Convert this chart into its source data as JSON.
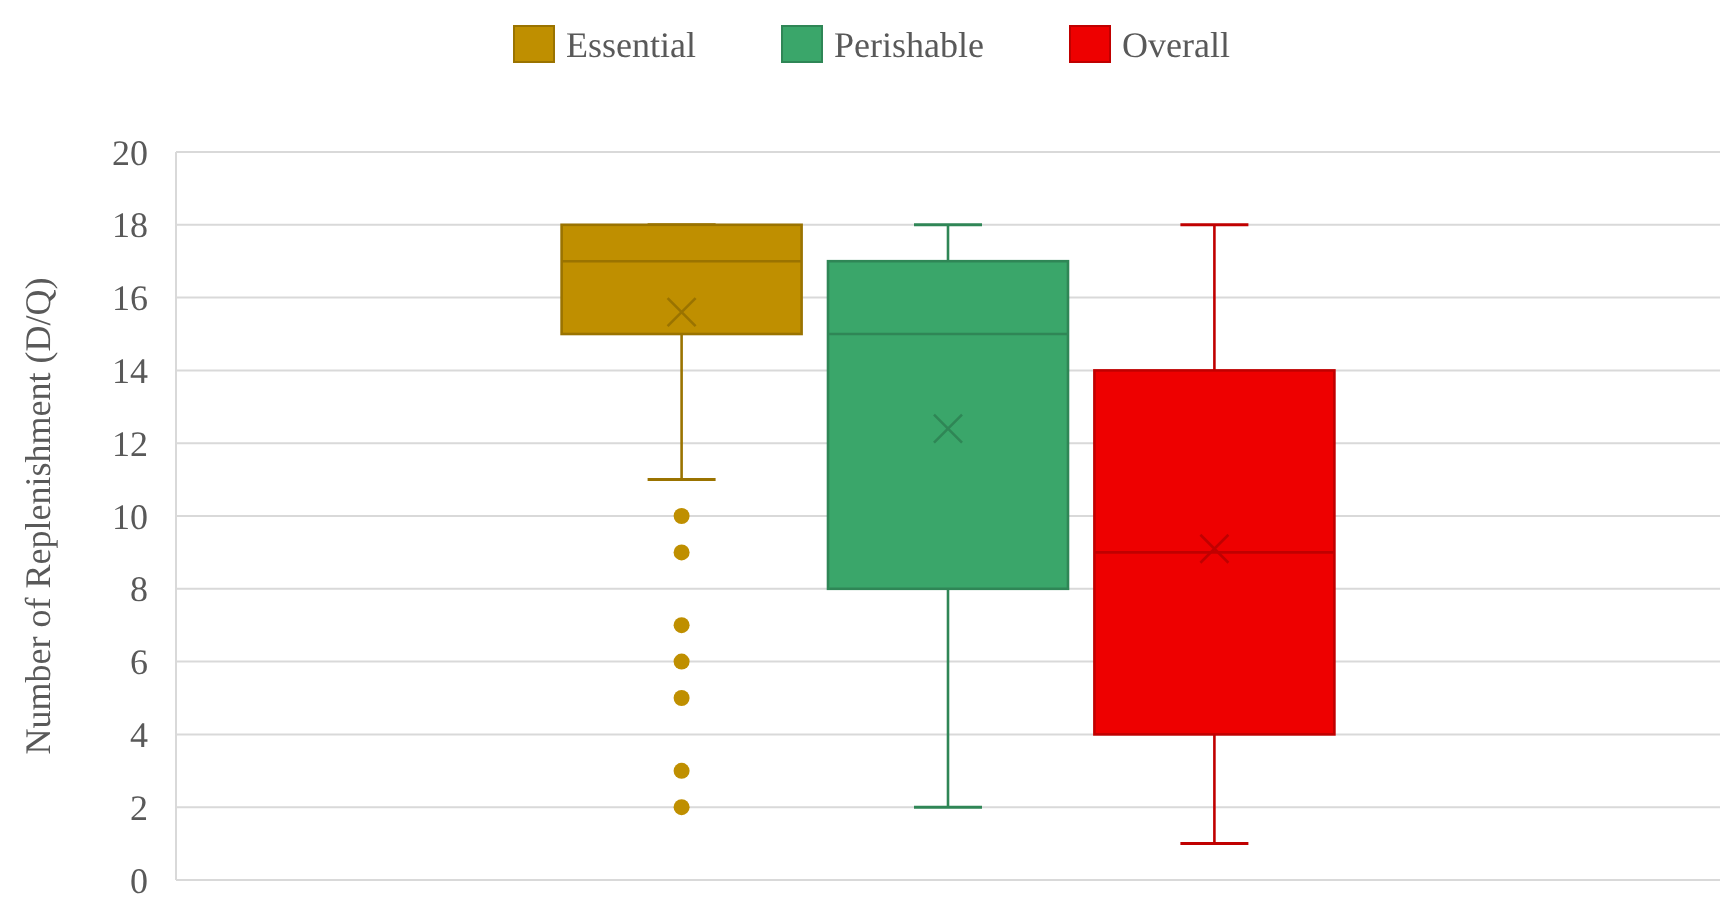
{
  "chart_data": {
    "type": "box",
    "categories": [
      null
    ],
    "ylabel": "Number of Replenishment  (D/Q)",
    "ylim": [
      0,
      20
    ],
    "yticks": [
      0,
      2,
      4,
      6,
      8,
      10,
      12,
      14,
      16,
      18,
      20
    ],
    "grid": "y",
    "legend": "top",
    "series": [
      {
        "name": "Essential",
        "color": "#bf8f00",
        "boxes": [
          {
            "low": 11,
            "q1": 15,
            "median": 17,
            "q3": 18,
            "high": 18,
            "mean": 15.6,
            "outliers": [
              10,
              9,
              7,
              6,
              5,
              3,
              2
            ]
          }
        ]
      },
      {
        "name": "Perishable",
        "color": "#3aa66a",
        "boxes": [
          {
            "low": 2,
            "q1": 8,
            "median": 15,
            "q3": 17,
            "high": 18,
            "mean": 12.4
          }
        ]
      },
      {
        "name": "Overall",
        "color": "#ee0000",
        "boxes": [
          {
            "low": 1,
            "q1": 4,
            "median": 9,
            "q3": 14,
            "high": 18,
            "mean": 9.1
          }
        ]
      }
    ]
  }
}
